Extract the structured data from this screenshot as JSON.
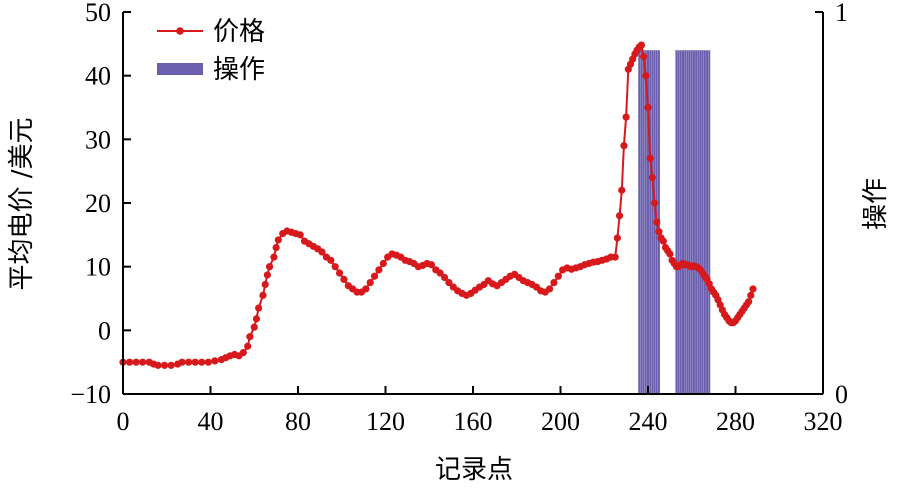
{
  "chart_data": {
    "type": "line",
    "title": "",
    "xlabel": "记录点",
    "ylabel_left": "平均电价 /美元",
    "ylabel_right": "操作",
    "xlim": [
      0,
      320
    ],
    "ylim_left": [
      -10,
      50
    ],
    "ylim_right": [
      0,
      1
    ],
    "x_ticks": [
      0,
      40,
      80,
      120,
      160,
      200,
      240,
      280,
      320
    ],
    "x_tick_labels": [
      "0",
      "40",
      "80",
      "120",
      "160",
      "200",
      "240",
      "280",
      "320"
    ],
    "y_left_ticks": [
      -10,
      0,
      10,
      20,
      30,
      40,
      50
    ],
    "y_left_tick_labels": [
      "−10",
      "0",
      "10",
      "20",
      "30",
      "40",
      "50"
    ],
    "y_right_ticks": [
      0,
      1
    ],
    "y_right_tick_labels": [
      "0",
      "1"
    ],
    "grid": false,
    "legend_position": "top-left",
    "colors": {
      "price": "#d7191c",
      "operation": "#6b5fae"
    },
    "series": [
      {
        "name": "价格",
        "axis": "left",
        "style": "line-marker",
        "points": [
          [
            0,
            -5
          ],
          [
            3,
            -5
          ],
          [
            6,
            -5
          ],
          [
            9,
            -5
          ],
          [
            12,
            -5
          ],
          [
            14,
            -5.3
          ],
          [
            16,
            -5.5
          ],
          [
            19,
            -5.5
          ],
          [
            22,
            -5.5
          ],
          [
            25,
            -5.3
          ],
          [
            27,
            -5
          ],
          [
            30,
            -5
          ],
          [
            33,
            -5
          ],
          [
            36,
            -5
          ],
          [
            39,
            -5
          ],
          [
            42,
            -4.8
          ],
          [
            45,
            -4.6
          ],
          [
            47,
            -4.3
          ],
          [
            49,
            -4
          ],
          [
            51,
            -3.8
          ],
          [
            53,
            -4
          ],
          [
            55,
            -3.5
          ],
          [
            57,
            -2.5
          ],
          [
            58,
            -1
          ],
          [
            60,
            0.5
          ],
          [
            61,
            1.8
          ],
          [
            62,
            3.5
          ],
          [
            64,
            5.5
          ],
          [
            65,
            7.2
          ],
          [
            66,
            8.7
          ],
          [
            67,
            10
          ],
          [
            69,
            11.5
          ],
          [
            70,
            13
          ],
          [
            71,
            14.2
          ],
          [
            73,
            15.2
          ],
          [
            75,
            15.6
          ],
          [
            77,
            15.4
          ],
          [
            79,
            15.2
          ],
          [
            81,
            15
          ],
          [
            83,
            14
          ],
          [
            85,
            13.6
          ],
          [
            87,
            13.2
          ],
          [
            89,
            12.8
          ],
          [
            91,
            12.3
          ],
          [
            93,
            11.5
          ],
          [
            95,
            11
          ],
          [
            97,
            10
          ],
          [
            99,
            9
          ],
          [
            101,
            8
          ],
          [
            103,
            7
          ],
          [
            105,
            6.5
          ],
          [
            107,
            6
          ],
          [
            109,
            6
          ],
          [
            111,
            6.5
          ],
          [
            113,
            7.5
          ],
          [
            115,
            8.5
          ],
          [
            117,
            9.5
          ],
          [
            119,
            10.5
          ],
          [
            121,
            11.5
          ],
          [
            123,
            12
          ],
          [
            125,
            11.8
          ],
          [
            127,
            11.5
          ],
          [
            129,
            11
          ],
          [
            131,
            10.8
          ],
          [
            133,
            10.5
          ],
          [
            135,
            10
          ],
          [
            137,
            10.2
          ],
          [
            139,
            10.5
          ],
          [
            141,
            10.3
          ],
          [
            143,
            9.5
          ],
          [
            145,
            9
          ],
          [
            147,
            8.3
          ],
          [
            149,
            7.5
          ],
          [
            151,
            6.8
          ],
          [
            153,
            6.2
          ],
          [
            155,
            5.8
          ],
          [
            157,
            5.5
          ],
          [
            159,
            5.8
          ],
          [
            161,
            6.3
          ],
          [
            163,
            6.8
          ],
          [
            165,
            7.2
          ],
          [
            167,
            7.8
          ],
          [
            169,
            7.3
          ],
          [
            171,
            7
          ],
          [
            173,
            7.5
          ],
          [
            175,
            8
          ],
          [
            177,
            8.5
          ],
          [
            179,
            8.8
          ],
          [
            181,
            8.3
          ],
          [
            183,
            7.8
          ],
          [
            185,
            7.5
          ],
          [
            187,
            7.2
          ],
          [
            189,
            6.8
          ],
          [
            191,
            6.2
          ],
          [
            193,
            6
          ],
          [
            195,
            6.5
          ],
          [
            197,
            7.5
          ],
          [
            199,
            8.5
          ],
          [
            201,
            9.5
          ],
          [
            203,
            9.8
          ],
          [
            205,
            9.6
          ],
          [
            207,
            9.8
          ],
          [
            209,
            10
          ],
          [
            211,
            10.3
          ],
          [
            213,
            10.5
          ],
          [
            215,
            10.7
          ],
          [
            217,
            10.8
          ],
          [
            219,
            11
          ],
          [
            221,
            11.2
          ],
          [
            223,
            11.5
          ],
          [
            225,
            11.5
          ],
          [
            226,
            14.5
          ],
          [
            227,
            18
          ],
          [
            228,
            22
          ],
          [
            229,
            29
          ],
          [
            230,
            33.5
          ],
          [
            231,
            41
          ],
          [
            232,
            41.8
          ],
          [
            233,
            42.6
          ],
          [
            234,
            43.4
          ],
          [
            235,
            44
          ],
          [
            236,
            44.5
          ],
          [
            237,
            44.8
          ],
          [
            238,
            43
          ],
          [
            239,
            40
          ],
          [
            240,
            35
          ],
          [
            241,
            27
          ],
          [
            242,
            24
          ],
          [
            243,
            20
          ],
          [
            244,
            17
          ],
          [
            245,
            15.5
          ],
          [
            246,
            14.5
          ],
          [
            247,
            14
          ],
          [
            248,
            13
          ],
          [
            249,
            12.5
          ],
          [
            250,
            12
          ],
          [
            251,
            11
          ],
          [
            252,
            10.5
          ],
          [
            253,
            10
          ],
          [
            254,
            10
          ],
          [
            255,
            10.3
          ],
          [
            256,
            10.5
          ],
          [
            257,
            10.3
          ],
          [
            258,
            10.3
          ],
          [
            259,
            10.1
          ],
          [
            260,
            10
          ],
          [
            261,
            10.1
          ],
          [
            262,
            10
          ],
          [
            263,
            9.8
          ],
          [
            264,
            9.5
          ],
          [
            265,
            9
          ],
          [
            266,
            8.5
          ],
          [
            267,
            8
          ],
          [
            268,
            7.3
          ],
          [
            269,
            6.5
          ],
          [
            270,
            6
          ],
          [
            271,
            5.5
          ],
          [
            272,
            4.8
          ],
          [
            273,
            4
          ],
          [
            274,
            3.2
          ],
          [
            275,
            2.5
          ],
          [
            276,
            2
          ],
          [
            277,
            1.5
          ],
          [
            278,
            1.2
          ],
          [
            279,
            1.2
          ],
          [
            280,
            1.5
          ],
          [
            281,
            2
          ],
          [
            282,
            2.5
          ],
          [
            283,
            3
          ],
          [
            284,
            3.5
          ],
          [
            285,
            4
          ],
          [
            286,
            4.5
          ],
          [
            287,
            5.5
          ],
          [
            288,
            6.5
          ]
        ]
      },
      {
        "name": "操作",
        "axis": "right",
        "style": "vertical-bars",
        "x": [
          236,
          237,
          238,
          239,
          240,
          241,
          242,
          243,
          244,
          245,
          253,
          254,
          255,
          256,
          257,
          258,
          259,
          260,
          261,
          262,
          263,
          264,
          265,
          266,
          267,
          268
        ],
        "value": 0.9
      }
    ]
  }
}
